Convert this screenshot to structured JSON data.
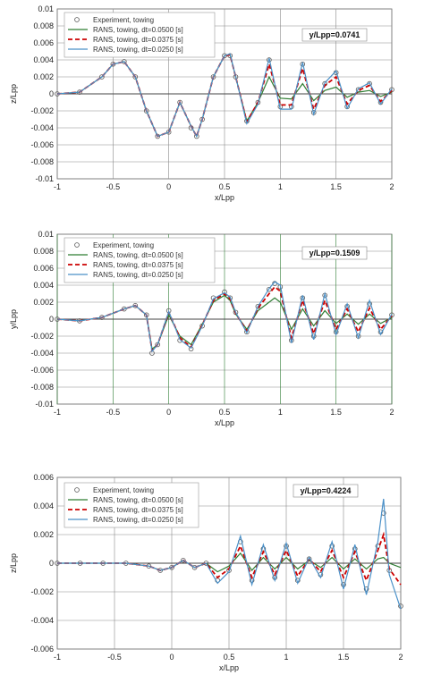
{
  "chart_data": [
    {
      "type": "line",
      "xlabel": "x/Lpp",
      "ylabel": "z/Lpp",
      "xlim": [
        -1,
        2
      ],
      "ylim": [
        -0.01,
        0.01
      ],
      "xticks": [
        "-1",
        "-0.5",
        "0",
        "0.5",
        "1",
        "1.5",
        "2"
      ],
      "yticks": [
        "0.01",
        "0.008",
        "0.006",
        "0.004",
        "0.002",
        "0",
        "-0.002",
        "-0.004",
        "-0.006",
        "-0.008",
        "-0.01"
      ],
      "xtick_values": [
        -1,
        -0.5,
        0,
        0.5,
        1,
        1.5,
        2
      ],
      "ytick_values": [
        0.01,
        0.008,
        0.006,
        0.004,
        0.002,
        0,
        -0.002,
        -0.004,
        -0.006,
        -0.008,
        -0.01
      ],
      "grid": "on",
      "legend_placement": "top-left",
      "annotation": "y/Lpp=0.0741",
      "x": [
        -1,
        -0.8,
        -0.6,
        -0.5,
        -0.4,
        -0.3,
        -0.2,
        -0.1,
        0,
        0.1,
        0.2,
        0.25,
        0.3,
        0.4,
        0.5,
        0.55,
        0.6,
        0.7,
        0.8,
        0.9,
        1.0,
        1.1,
        1.2,
        1.3,
        1.4,
        1.5,
        1.6,
        1.7,
        1.8,
        1.9,
        2.0
      ],
      "series": [
        {
          "name": "Experiment, towing",
          "color": "#555555",
          "style": "marker",
          "values": [
            0,
            0.0002,
            0.002,
            0.0035,
            0.0038,
            0.002,
            -0.002,
            -0.005,
            -0.0045,
            -0.001,
            -0.004,
            -0.005,
            -0.003,
            0.002,
            0.0045,
            0.0045,
            0.002,
            -0.0032,
            -0.001,
            0.004,
            -0.0015,
            -0.0015,
            0.0035,
            -0.0022,
            0.0012,
            0.0025,
            -0.0015,
            0.0005,
            0.0012,
            -0.001,
            0.0005
          ]
        },
        {
          "name": "RANS, towing, dt=0.0500 [s]",
          "color": "#2e7d32",
          "style": "solid",
          "values": [
            0,
            0.0002,
            0.002,
            0.0035,
            0.0038,
            0.002,
            -0.002,
            -0.005,
            -0.0045,
            -0.001,
            -0.0038,
            -0.005,
            -0.003,
            0.002,
            0.0045,
            0.0046,
            0.002,
            -0.0032,
            -0.001,
            0.002,
            -0.0005,
            -0.0006,
            0.0012,
            -0.0008,
            0.0004,
            0.0008,
            -0.0004,
            0.0002,
            0.0004,
            -0.0003,
            0.0002
          ]
        },
        {
          "name": "RANS, towing, dt=0.0375 [s]",
          "color": "#cc0000",
          "style": "dashed",
          "values": [
            0,
            0.0002,
            0.002,
            0.0035,
            0.0038,
            0.002,
            -0.002,
            -0.005,
            -0.0045,
            -0.001,
            -0.0038,
            -0.005,
            -0.003,
            0.002,
            0.0045,
            0.0046,
            0.002,
            -0.0033,
            -0.001,
            0.0035,
            -0.0013,
            -0.0013,
            0.003,
            -0.0018,
            0.001,
            0.002,
            -0.0012,
            0.0004,
            0.001,
            -0.0009,
            0.0004
          ]
        },
        {
          "name": "RANS, towing, dt=0.0250 [s]",
          "color": "#4a90c8",
          "style": "solid",
          "values": [
            0,
            0.0002,
            0.002,
            0.0035,
            0.0038,
            0.002,
            -0.002,
            -0.005,
            -0.0045,
            -0.001,
            -0.0038,
            -0.005,
            -0.003,
            0.002,
            0.0045,
            0.0047,
            0.002,
            -0.0035,
            -0.0012,
            0.0042,
            -0.0018,
            -0.0018,
            0.0037,
            -0.0024,
            0.0013,
            0.0027,
            -0.0017,
            0.0006,
            0.0013,
            -0.0012,
            0.0006
          ]
        }
      ]
    },
    {
      "type": "line",
      "xlabel": "x/Lpp",
      "ylabel": "y/Lpp",
      "xlim": [
        -1,
        2
      ],
      "ylim": [
        -0.01,
        0.01
      ],
      "xticks": [
        "-1",
        "-0.5",
        "0",
        "0.5",
        "1",
        "1.5",
        "2"
      ],
      "yticks": [
        "0.01",
        "0.008",
        "0.006",
        "0.004",
        "0.002",
        "0",
        "-0.002",
        "-0.004",
        "-0.006",
        "-0.008",
        "-0.01"
      ],
      "xtick_values": [
        -1,
        -0.5,
        0,
        0.5,
        1,
        1.5,
        2
      ],
      "ytick_values": [
        0.01,
        0.008,
        0.006,
        0.004,
        0.002,
        0,
        -0.002,
        -0.004,
        -0.006,
        -0.008,
        -0.01
      ],
      "grid": "on",
      "legend_placement": "top-left",
      "annotation": "y/Lpp=0.1509",
      "x": [
        -1,
        -0.8,
        -0.6,
        -0.4,
        -0.3,
        -0.2,
        -0.15,
        -0.1,
        0,
        0.1,
        0.2,
        0.3,
        0.4,
        0.5,
        0.55,
        0.6,
        0.7,
        0.8,
        0.9,
        0.95,
        1.0,
        1.1,
        1.2,
        1.3,
        1.4,
        1.5,
        1.6,
        1.7,
        1.8,
        1.9,
        2.0
      ],
      "series": [
        {
          "name": "Experiment, towing",
          "color": "#555555",
          "style": "marker",
          "values": [
            0,
            -0.0002,
            0.0002,
            0.0012,
            0.0016,
            0.0005,
            -0.004,
            -0.003,
            0.001,
            -0.0025,
            -0.0035,
            -0.0008,
            0.0025,
            0.0032,
            0.0025,
            0.0008,
            -0.0015,
            0.0015,
            0.0035,
            0.0042,
            0.0038,
            -0.0025,
            0.0025,
            -0.002,
            0.0028,
            -0.0015,
            0.0015,
            -0.002,
            0.0018,
            -0.0015,
            0.0005
          ]
        },
        {
          "name": "RANS, towing, dt=0.0500 [s]",
          "color": "#2e7d32",
          "style": "solid",
          "values": [
            0,
            -0.0002,
            0.0002,
            0.0012,
            0.0016,
            0.0005,
            -0.0035,
            -0.003,
            0.0005,
            -0.002,
            -0.003,
            -0.0006,
            0.002,
            0.0028,
            0.0022,
            0.0006,
            -0.0012,
            0.001,
            0.002,
            0.0025,
            0.002,
            -0.0012,
            0.0012,
            -0.0008,
            0.001,
            -0.0005,
            0.0006,
            -0.0006,
            0.0006,
            -0.0005,
            0.0002
          ]
        },
        {
          "name": "RANS, towing, dt=0.0375 [s]",
          "color": "#cc0000",
          "style": "dashed",
          "values": [
            0,
            -0.0002,
            0.0002,
            0.0012,
            0.0016,
            0.0005,
            -0.0037,
            -0.003,
            0.0008,
            -0.0022,
            -0.0033,
            -0.0007,
            0.0022,
            0.003,
            0.0024,
            0.0007,
            -0.0014,
            0.0013,
            0.003,
            0.0038,
            0.0033,
            -0.0022,
            0.0022,
            -0.0017,
            0.0022,
            -0.0012,
            0.0012,
            -0.0015,
            0.0013,
            -0.0012,
            0.0004
          ]
        },
        {
          "name": "RANS, towing, dt=0.0250 [s]",
          "color": "#4a90c8",
          "style": "solid",
          "values": [
            0,
            -0.0002,
            0.0002,
            0.0012,
            0.0016,
            0.0005,
            -0.0038,
            -0.003,
            0.0009,
            -0.0024,
            -0.0034,
            -0.0008,
            0.0024,
            0.0031,
            0.0026,
            0.0008,
            -0.0016,
            0.0015,
            0.0036,
            0.0044,
            0.004,
            -0.0028,
            0.0028,
            -0.0024,
            0.003,
            -0.0018,
            0.0018,
            -0.0022,
            0.0022,
            -0.0018,
            0.0006
          ]
        }
      ]
    },
    {
      "type": "line",
      "xlabel": "x/Lpp",
      "ylabel": "z/Lpp",
      "xlim": [
        -1,
        2
      ],
      "ylim": [
        -0.006,
        0.006
      ],
      "xticks": [
        "-1",
        "-0.5",
        "0",
        "0.5",
        "1",
        "1.5",
        "2"
      ],
      "yticks": [
        "0.006",
        "0.004",
        "0.002",
        "0",
        "-0.002",
        "-0.004",
        "-0.006"
      ],
      "xtick_values": [
        -1,
        -0.5,
        0,
        0.5,
        1,
        1.5,
        2
      ],
      "ytick_values": [
        0.006,
        0.004,
        0.002,
        0,
        -0.002,
        -0.004,
        -0.006
      ],
      "grid": "on",
      "legend_placement": "top-left",
      "annotation": "y/Lpp=0.4224",
      "x": [
        -1,
        -0.8,
        -0.6,
        -0.4,
        -0.2,
        -0.1,
        0,
        0.1,
        0.2,
        0.3,
        0.4,
        0.5,
        0.6,
        0.7,
        0.8,
        0.9,
        1.0,
        1.1,
        1.2,
        1.3,
        1.4,
        1.5,
        1.6,
        1.7,
        1.8,
        1.85,
        1.9,
        2.0
      ],
      "series": [
        {
          "name": "Experiment, towing",
          "color": "#555555",
          "style": "marker",
          "values": [
            0,
            0,
            0,
            0,
            -0.0002,
            -0.0005,
            -0.0003,
            0.0002,
            -0.0003,
            0.0,
            -0.0012,
            -0.0005,
            0.0015,
            -0.0012,
            0.001,
            -0.001,
            0.0012,
            -0.0012,
            0.0003,
            -0.0008,
            0.0012,
            -0.0015,
            0.001,
            -0.0018,
            0.0012,
            0.0035,
            -0.0005,
            -0.003
          ]
        },
        {
          "name": "RANS, towing, dt=0.0500 [s]",
          "color": "#2e7d32",
          "style": "solid",
          "values": [
            0,
            0,
            0,
            0,
            -0.0002,
            -0.0005,
            -0.0003,
            0.0002,
            -0.0003,
            0.0,
            -0.0006,
            -0.0002,
            0.0007,
            -0.0005,
            0.0004,
            -0.0004,
            0.0004,
            -0.0004,
            0.0002,
            -0.0003,
            0.0004,
            -0.0004,
            0.0003,
            -0.0004,
            0.0003,
            0.0004,
            0.0,
            -0.0003
          ]
        },
        {
          "name": "RANS, towing, dt=0.0375 [s]",
          "color": "#cc0000",
          "style": "dashed",
          "values": [
            0,
            0,
            0,
            0,
            -0.0002,
            -0.0005,
            -0.0003,
            0.0002,
            -0.0003,
            0.0,
            -0.001,
            -0.0004,
            0.0012,
            -0.001,
            0.0008,
            -0.0008,
            0.0009,
            -0.0009,
            0.0003,
            -0.0006,
            0.0009,
            -0.001,
            0.0008,
            -0.0012,
            0.0009,
            0.002,
            -0.0004,
            -0.0015
          ]
        },
        {
          "name": "RANS, towing, dt=0.0250 [s]",
          "color": "#4a90c8",
          "style": "solid",
          "values": [
            0,
            0,
            0,
            0,
            -0.0002,
            -0.0005,
            -0.0003,
            0.0002,
            -0.0003,
            0.0,
            -0.0014,
            -0.0006,
            0.0019,
            -0.0015,
            0.0013,
            -0.0012,
            0.0014,
            -0.0014,
            0.0004,
            -0.001,
            0.0015,
            -0.0018,
            0.0013,
            -0.0022,
            0.0015,
            0.0045,
            -0.0008,
            -0.0032
          ]
        }
      ]
    }
  ]
}
